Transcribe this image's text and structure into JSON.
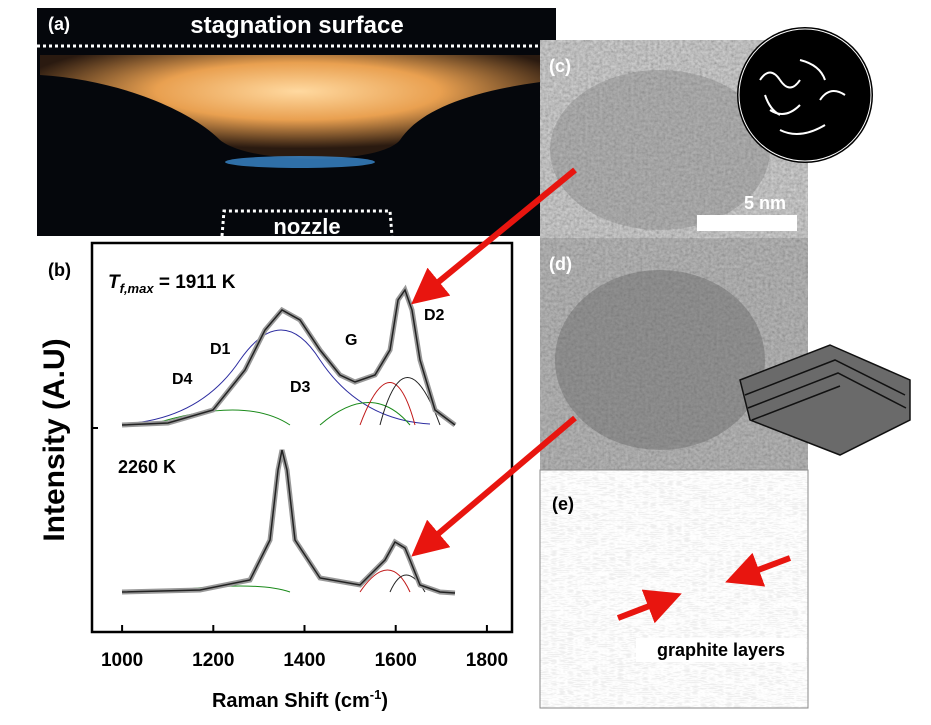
{
  "panel_a": {
    "label": "(a)",
    "top_text": "stagnation surface",
    "bottom_text": "nozzle"
  },
  "panel_b": {
    "label": "(b)",
    "y_label": "Intensity (A.U)",
    "x_label": {
      "main": "Raman Shift (cm",
      "sup": "-1",
      "end": ")"
    },
    "xlim": [
      934,
      1855
    ],
    "xticks": [
      1000,
      1200,
      1400,
      1600,
      1800
    ],
    "upper": {
      "temp_symbol": "T",
      "temp_sub": "f,max",
      "temp_value": " = 1911 K",
      "peaks": [
        "D1",
        "D2",
        "D3",
        "D4",
        "G"
      ]
    },
    "lower": {
      "temp": "2260 K"
    }
  },
  "panel_c": {
    "label": "(c)",
    "scale_bar": "5 nm"
  },
  "panel_d": {
    "label": "(d)"
  },
  "panel_e": {
    "label": "(e)",
    "annotation": "graphite layers"
  }
}
